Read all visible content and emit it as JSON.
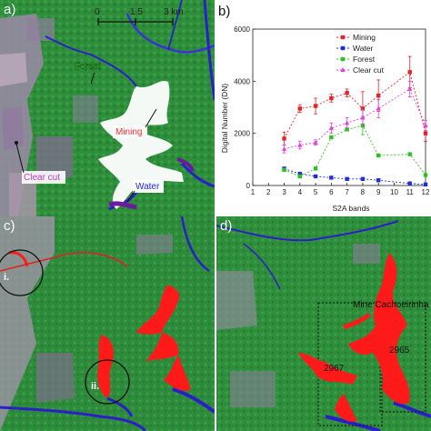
{
  "panels": {
    "a": {
      "label": "a)",
      "scale": {
        "ticks": [
          "0",
          "1.5",
          "3 km"
        ]
      },
      "annotations": [
        {
          "text": "Forest",
          "color": "#39d631"
        },
        {
          "text": "Mining",
          "color": "#ff2a2a"
        },
        {
          "text": "Clear cut",
          "color": "#c23bc7"
        },
        {
          "text": "Water",
          "color": "#2b2bdc"
        }
      ]
    },
    "b": {
      "label": "b)"
    },
    "c": {
      "label": "c)",
      "markers": [
        "i.",
        "ii."
      ]
    },
    "d": {
      "label": "d)",
      "annotations": [
        "Mine Cachoeirinha",
        "2965",
        "2967"
      ]
    }
  },
  "colors": {
    "forest": "#2f8f3c",
    "water": "#2a1fc9",
    "mining_mask": "#ff1a1a",
    "mining_bright": "#ffffff",
    "clearcut": "#9a7aa6"
  },
  "chart_data": {
    "type": "line",
    "xlabel": "S2A bands",
    "ylabel": "Digital Number (DN)",
    "xlim": [
      1,
      12
    ],
    "ylim": [
      0,
      6000
    ],
    "x_ticks": [
      "1",
      "2",
      "3",
      "4",
      "5",
      "6",
      "7",
      "8",
      "9",
      "10",
      "11",
      "12"
    ],
    "y_ticks": [
      "0",
      "2000",
      "4000",
      "6000"
    ],
    "grid": false,
    "legend_placement": "top-right",
    "series": [
      {
        "name": "Mining",
        "color": "#e3242b",
        "marker": "square",
        "x": [
          3,
          4,
          5,
          6,
          7,
          8,
          9,
          11,
          12
        ],
        "y": [
          1800,
          2950,
          3050,
          3350,
          3550,
          2950,
          3450,
          4350,
          2000
        ],
        "err": [
          250,
          150,
          300,
          150,
          150,
          650,
          600,
          600,
          300
        ]
      },
      {
        "name": "Water",
        "color": "#1f2fd8",
        "marker": "square",
        "x": [
          3,
          4,
          5,
          6,
          7,
          8,
          9,
          11,
          12
        ],
        "y": [
          650,
          450,
          350,
          300,
          250,
          250,
          200,
          80,
          40
        ],
        "err": [
          0,
          0,
          0,
          0,
          0,
          0,
          0,
          0,
          0
        ]
      },
      {
        "name": "Forest",
        "color": "#29c41f",
        "marker": "square",
        "x": [
          3,
          4,
          5,
          6,
          7,
          8,
          9,
          11,
          12
        ],
        "y": [
          600,
          350,
          650,
          1850,
          2150,
          2300,
          1150,
          1200,
          400
        ],
        "err": [
          0,
          0,
          0,
          0,
          0,
          350,
          0,
          0,
          0
        ]
      },
      {
        "name": "Clear cut",
        "color": "#e33fe0",
        "marker": "triangle",
        "x": [
          3,
          4,
          5,
          6,
          7,
          8,
          9,
          11,
          12
        ],
        "y": [
          1400,
          1550,
          1650,
          2200,
          2400,
          2600,
          2950,
          3700,
          2300
        ],
        "err": [
          150,
          150,
          100,
          200,
          200,
          300,
          350,
          300,
          200
        ]
      }
    ]
  }
}
